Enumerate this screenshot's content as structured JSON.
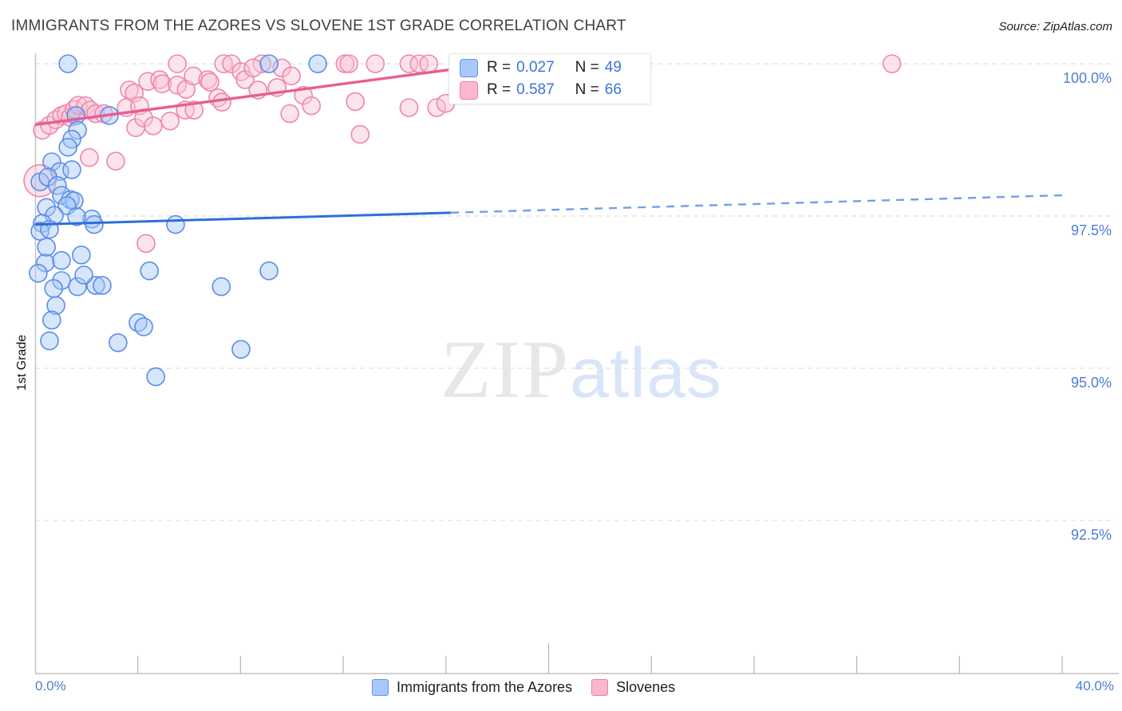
{
  "header": {
    "title": "IMMIGRANTS FROM THE AZORES VS SLOVENE 1ST GRADE CORRELATION CHART",
    "source": "Source: ZipAtlas.com"
  },
  "watermark": {
    "zip": "ZIP",
    "atlas": "atlas"
  },
  "y_axis": {
    "label": "1st Grade",
    "ticks": [
      {
        "value": 100.0,
        "label": "100.0%"
      },
      {
        "value": 97.5,
        "label": "97.5%"
      },
      {
        "value": 95.0,
        "label": "95.0%"
      },
      {
        "value": 92.5,
        "label": "92.5%"
      }
    ]
  },
  "x_axis": {
    "min": 0,
    "max": 40,
    "min_label": "0.0%",
    "max_label": "40.0%"
  },
  "legend_box": {
    "rows": [
      {
        "series": "Immigrants from the Azores",
        "r_label": "R =",
        "r_value": "0.027",
        "n_label": "N =",
        "n_value": "49"
      },
      {
        "series": "Slovenes",
        "r_label": "R =",
        "r_value": "0.587",
        "n_label": "N =",
        "n_value": "66"
      }
    ]
  },
  "bottom_legend": [
    {
      "label": "Immigrants from the Azores"
    },
    {
      "label": "Slovenes"
    }
  ],
  "colors": {
    "blue_stroke": "#5b8bea",
    "blue_fill": "rgba(164,199,247,0.45)",
    "blue_trend": "#2e6fd8",
    "blue_trend_dash": "#719fe8",
    "pink_stroke": "#ef85ac",
    "pink_fill": "rgba(248,196,213,0.45)",
    "pink_trend": "#e75e92",
    "grid": "#d9d9d9",
    "axis": "#c0c0c0",
    "tick_label_blue": "#4d7dd3"
  },
  "chart_data": {
    "type": "scatter",
    "title": "IMMIGRANTS FROM THE AZORES VS SLOVENE 1ST GRADE CORRELATION CHART",
    "xlabel": "",
    "ylabel": "1st Grade",
    "xlim": [
      0,
      40
    ],
    "ylim": [
      90,
      100.2
    ],
    "grid": true,
    "grid_y_values": [
      100,
      97.5,
      95,
      92.5
    ],
    "x_tick_count": 10,
    "legend": [
      "Immigrants from the Azores",
      "Slovenes"
    ],
    "series": [
      {
        "name": "Immigrants from the Azores",
        "R": 0.027,
        "N": 49,
        "points": [
          [
            1.28,
            100.0
          ],
          [
            9.11,
            100.0
          ],
          [
            11.01,
            100.0
          ],
          [
            1.59,
            99.15
          ],
          [
            2.89,
            99.15
          ],
          [
            1.65,
            98.91
          ],
          [
            1.43,
            98.76
          ],
          [
            1.28,
            98.63
          ],
          [
            0.65,
            98.39
          ],
          [
            0.96,
            98.23
          ],
          [
            1.43,
            98.26
          ],
          [
            0.19,
            98.06
          ],
          [
            0.5,
            98.14
          ],
          [
            0.87,
            98.0
          ],
          [
            1.03,
            97.84
          ],
          [
            1.37,
            97.77
          ],
          [
            1.52,
            97.75
          ],
          [
            0.44,
            97.64
          ],
          [
            1.24,
            97.67
          ],
          [
            0.75,
            97.51
          ],
          [
            2.21,
            97.45
          ],
          [
            2.3,
            97.36
          ],
          [
            0.28,
            97.38
          ],
          [
            0.19,
            97.25
          ],
          [
            0.56,
            97.28
          ],
          [
            1.62,
            97.49
          ],
          [
            5.47,
            97.36
          ],
          [
            0.4,
            96.73
          ],
          [
            1.03,
            96.77
          ],
          [
            1.8,
            96.86
          ],
          [
            4.45,
            96.6
          ],
          [
            9.11,
            96.6
          ],
          [
            0.44,
            96.99
          ],
          [
            0.12,
            96.56
          ],
          [
            1.03,
            96.44
          ],
          [
            0.72,
            96.31
          ],
          [
            1.65,
            96.34
          ],
          [
            2.36,
            96.36
          ],
          [
            2.61,
            96.36
          ],
          [
            7.25,
            96.34
          ],
          [
            1.9,
            96.53
          ],
          [
            0.81,
            96.03
          ],
          [
            0.65,
            95.79
          ],
          [
            0.56,
            95.45
          ],
          [
            3.23,
            95.42
          ],
          [
            4.01,
            95.75
          ],
          [
            4.23,
            95.68
          ],
          [
            8.02,
            95.31
          ],
          [
            4.7,
            94.86
          ]
        ]
      },
      {
        "name": "Slovenes",
        "R": 0.587,
        "N": 66,
        "points": [
          [
            5.54,
            100.0
          ],
          [
            7.34,
            100.0
          ],
          [
            7.65,
            100.0
          ],
          [
            8.83,
            100.0
          ],
          [
            12.07,
            100.0
          ],
          [
            12.22,
            100.0
          ],
          [
            13.25,
            100.0
          ],
          [
            14.56,
            100.0
          ],
          [
            14.96,
            100.0
          ],
          [
            15.33,
            100.0
          ],
          [
            17.82,
            100.0
          ],
          [
            21.18,
            100.0
          ],
          [
            21.65,
            100.0
          ],
          [
            23.05,
            100.0
          ],
          [
            33.37,
            100.0
          ],
          [
            0.28,
            98.91
          ],
          [
            0.56,
            98.99
          ],
          [
            0.81,
            99.08
          ],
          [
            1.03,
            99.15
          ],
          [
            1.21,
            99.18
          ],
          [
            1.37,
            99.12
          ],
          [
            1.52,
            99.25
          ],
          [
            1.68,
            99.32
          ],
          [
            1.96,
            99.31
          ],
          [
            2.15,
            99.24
          ],
          [
            2.36,
            99.18
          ],
          [
            2.67,
            99.18
          ],
          [
            3.67,
            99.57
          ],
          [
            3.86,
            99.52
          ],
          [
            3.55,
            99.28
          ],
          [
            4.07,
            99.31
          ],
          [
            3.92,
            98.95
          ],
          [
            4.23,
            99.11
          ],
          [
            4.39,
            99.71
          ],
          [
            4.6,
            98.98
          ],
          [
            4.85,
            99.74
          ],
          [
            4.95,
            99.67
          ],
          [
            5.26,
            99.06
          ],
          [
            5.54,
            99.65
          ],
          [
            5.85,
            99.24
          ],
          [
            5.88,
            99.58
          ],
          [
            6.16,
            99.8
          ],
          [
            6.19,
            99.24
          ],
          [
            6.72,
            99.74
          ],
          [
            6.81,
            99.7
          ],
          [
            7.12,
            99.44
          ],
          [
            7.28,
            99.37
          ],
          [
            8.02,
            99.87
          ],
          [
            8.18,
            99.74
          ],
          [
            8.49,
            99.93
          ],
          [
            8.68,
            99.57
          ],
          [
            9.42,
            99.61
          ],
          [
            9.61,
            99.93
          ],
          [
            9.92,
            99.18
          ],
          [
            9.98,
            99.8
          ],
          [
            10.45,
            99.48
          ],
          [
            10.76,
            99.31
          ],
          [
            12.47,
            99.38
          ],
          [
            12.66,
            98.84
          ],
          [
            14.56,
            99.28
          ],
          [
            15.64,
            99.28
          ],
          [
            15.99,
            99.35
          ],
          [
            0.19,
            98.08,
            20
          ],
          [
            2.11,
            98.46
          ],
          [
            3.14,
            98.4
          ],
          [
            4.32,
            97.05
          ]
        ]
      }
    ],
    "trend_lines": [
      {
        "series": "Slovenes",
        "start": [
          0,
          99.0
        ],
        "end": [
          16.1,
          99.9
        ],
        "solid_until": 16.1
      },
      {
        "series": "Immigrants from the Azores",
        "start": [
          0,
          97.36
        ],
        "end": [
          40,
          97.84
        ],
        "solid_until": 16.2
      }
    ]
  }
}
